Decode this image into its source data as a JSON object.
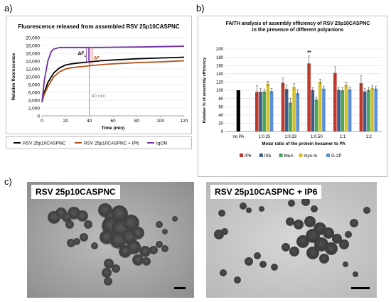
{
  "panels": {
    "a": "a)",
    "b": "b)",
    "c": "c)"
  },
  "colors": {
    "a_rsv": "#000000",
    "a_rsv_ip6": "#b5541c",
    "a_tqon": "#7030a0",
    "b_no_pa": "#000000",
    "b_ip6": "#c0392b",
    "b_is6": "#3a5f8f",
    "b_mea": "#4aa65a",
    "b_myo_in": "#d4c22c",
    "b_g2p": "#5b8fd6"
  },
  "chart_data": [
    {
      "type": "line",
      "title": "Fluorescence released from assembled RSV 25p10CASPNC",
      "xlabel": "Time (min)",
      "ylabel": "Relative fluorescence",
      "xlim": [
        0,
        120
      ],
      "ylim": [
        0,
        20000
      ],
      "xticks": [
        0,
        20,
        40,
        60,
        80,
        100,
        120
      ],
      "yticks": [
        0,
        2000,
        4000,
        6000,
        8000,
        10000,
        12000,
        14000,
        16000,
        18000,
        20000
      ],
      "ytick_labels": [
        "0",
        "2,000",
        "4,000",
        "6,000",
        "8,000",
        "10,000",
        "12,000",
        "14,000",
        "16,000",
        "18,000",
        "20,000"
      ],
      "grid": "horizontal",
      "legend_position": "bottom",
      "x": [
        0,
        2,
        5,
        8,
        10,
        15,
        20,
        25,
        30,
        40,
        50,
        60,
        80,
        100,
        120
      ],
      "series": [
        {
          "name": "RSV 25p10CASPNC",
          "color_key": "a_rsv",
          "values": [
            3500,
            6000,
            8500,
            10000,
            11000,
            12300,
            13000,
            13300,
            13500,
            13800,
            14100,
            14300,
            14600,
            14800,
            15000
          ]
        },
        {
          "name": "RSV 25p10CASPNC + IP6",
          "color_key": "a_rsv_ip6",
          "values": [
            3500,
            5500,
            7500,
            9000,
            10000,
            11300,
            12000,
            12300,
            12500,
            12800,
            13100,
            13300,
            13600,
            13800,
            14100
          ]
        },
        {
          "name": "tqON",
          "color_key": "a_tqon",
          "values": [
            3500,
            9000,
            14000,
            16500,
            17100,
            17500,
            17500,
            17500,
            17500,
            17500,
            17500,
            17550,
            17600,
            17700,
            17800
          ]
        }
      ],
      "annotations": {
        "delta_f1": "ΔF",
        "delta_f1_sub": "1",
        "delta_f2": "ΔF",
        "delta_f2_sub": "2",
        "vline_x": 40,
        "vline_label": "40 min"
      }
    },
    {
      "type": "bar",
      "title": "FAITH analysis of assembly efficiency of RSV 25p10CASPNC",
      "subtitle": "in the presence of different polyanions",
      "xlabel": "Molar ratio of the protein hexamer to PA",
      "ylabel": "Relative % of assembly efficiency",
      "ylim": [
        0,
        200
      ],
      "yticks": [
        0,
        20,
        40,
        60,
        80,
        100,
        120,
        140,
        160,
        180,
        200
      ],
      "grid": "horizontal",
      "legend_position": "bottom",
      "categories": [
        "no PA",
        "1:0.25",
        "1:0.33",
        "1:0.50",
        "1:1",
        "1:2"
      ],
      "control": {
        "category": "no PA",
        "value": 100,
        "color_key": "b_no_pa"
      },
      "significance": {
        "category": "1:0.50",
        "series": "IP6",
        "label": "**"
      },
      "series": [
        {
          "name": "IP6",
          "color_key": "b_ip6",
          "values": [
            null,
            96,
            118,
            165,
            142,
            117
          ],
          "errors": [
            null,
            15,
            12,
            18,
            15,
            18
          ]
        },
        {
          "name": "IS6",
          "color_key": "b_is6",
          "values": [
            null,
            96,
            103,
            100,
            101,
            97
          ],
          "errors": [
            null,
            8,
            10,
            6,
            6,
            8
          ]
        },
        {
          "name": "MeA",
          "color_key": "b_mea",
          "values": [
            null,
            97,
            70,
            77,
            100,
            101
          ],
          "errors": [
            null,
            6,
            10,
            6,
            6,
            6
          ]
        },
        {
          "name": "myo-In",
          "color_key": "b_myo_in",
          "values": [
            null,
            116,
            108,
            121,
            113,
            106
          ],
          "errors": [
            null,
            6,
            8,
            6,
            6,
            6
          ]
        },
        {
          "name": "G-2P",
          "color_key": "b_g2p",
          "values": [
            null,
            98,
            93,
            104,
            102,
            104
          ],
          "errors": [
            null,
            6,
            8,
            6,
            6,
            6
          ]
        }
      ]
    }
  ],
  "micrographs": [
    {
      "label": "RSV 25p10CASPNC"
    },
    {
      "label": "RSV 25p10CASPNC + IP6"
    }
  ]
}
